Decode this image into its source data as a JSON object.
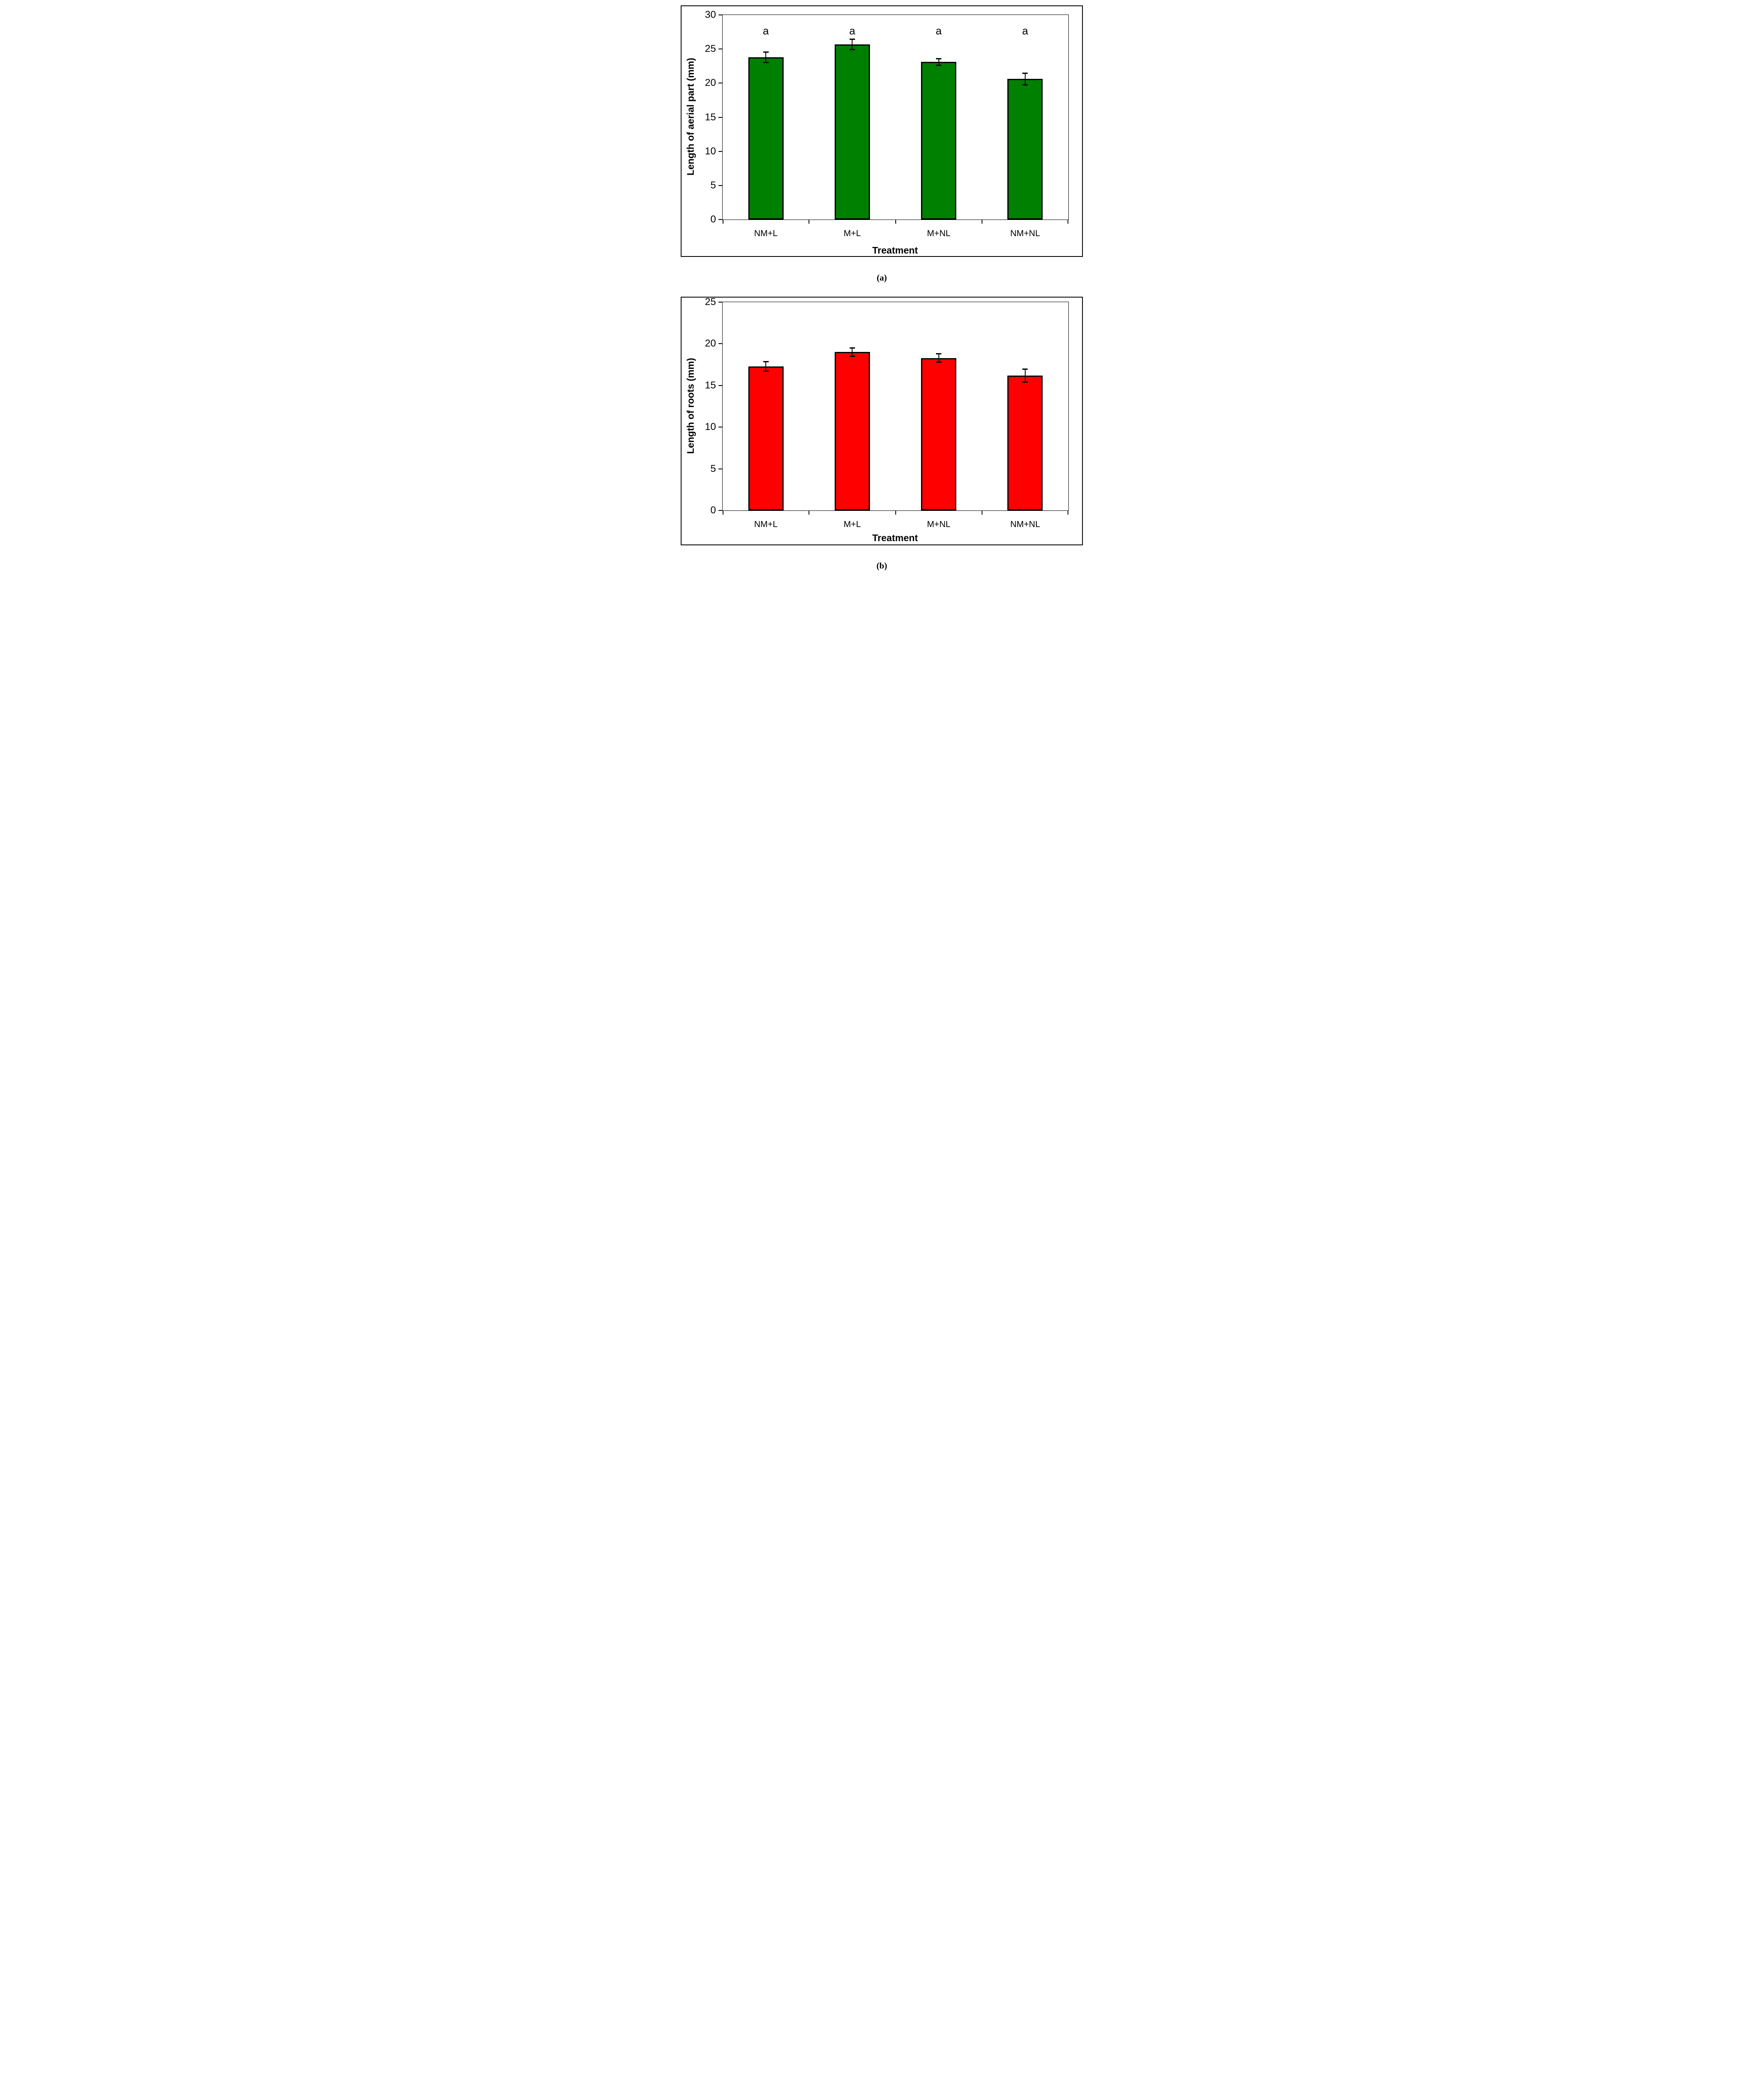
{
  "captions": {
    "a": "(a)",
    "b": "(b)"
  },
  "chart_data": [
    {
      "type": "bar",
      "panel": "a",
      "title": "",
      "xlabel": "Treatment",
      "ylabel": "Length of aerial part (mm)",
      "categories": [
        "NM+L",
        "M+L",
        "M+NL",
        "NM+NL"
      ],
      "values": [
        23.8,
        25.7,
        23.1,
        20.6
      ],
      "error_bars": [
        0.8,
        0.8,
        0.5,
        0.9
      ],
      "sig_letters": [
        "a",
        "a",
        "a",
        "a"
      ],
      "sig_letter_y": 27.7,
      "ylim": [
        0,
        30
      ],
      "ytick_step": 5,
      "bar_color": "#008000",
      "bar_border_color": "#000000",
      "grid": "off",
      "legend": "none"
    },
    {
      "type": "bar",
      "panel": "b",
      "title": "",
      "xlabel": "Treatment",
      "ylabel": "Length of roots (mm)",
      "categories": [
        "NM+L",
        "M+L",
        "M+NL",
        "NM+NL"
      ],
      "values": [
        17.3,
        19.0,
        18.3,
        16.2
      ],
      "error_bars": [
        0.6,
        0.5,
        0.5,
        0.8
      ],
      "sig_letters": [],
      "sig_letter_y": null,
      "ylim": [
        0,
        25
      ],
      "ytick_step": 5,
      "bar_color": "#FF0000",
      "bar_border_color": "#000000",
      "grid": "off",
      "legend": "none"
    }
  ]
}
